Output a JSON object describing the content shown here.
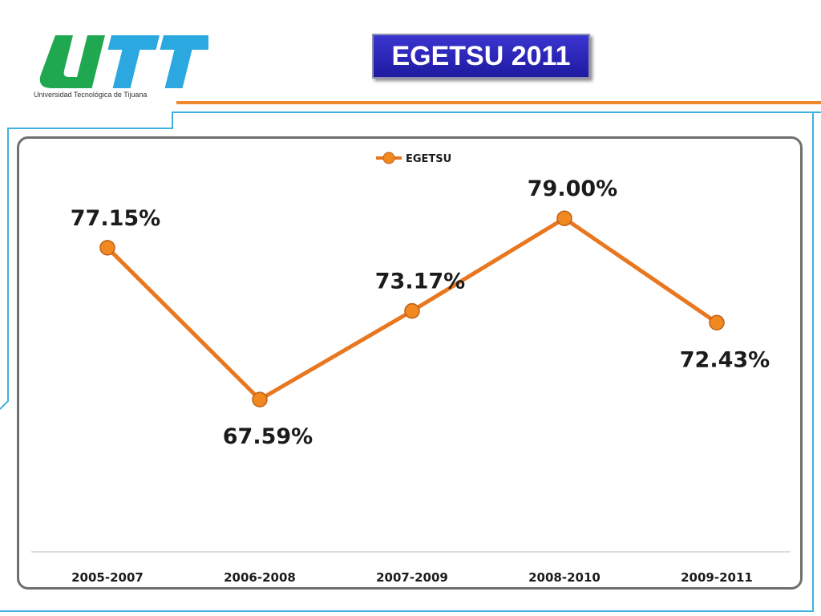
{
  "header": {
    "logo_text": "UTT",
    "logo_caption": "Universidad Tecnológica de Tijuana",
    "title": "EGETSU 2011"
  },
  "colors": {
    "logo_green": "#1fa84f",
    "logo_blue": "#2aa8df",
    "accent_orange": "#ee8a2e",
    "frame_blue": "#3fb0e0",
    "title_bg": "#2a25b8",
    "series_line": "#e8771f",
    "marker_fill": "#f0891f"
  },
  "chart_data": {
    "type": "line",
    "categories": [
      "2005-2007",
      "2006-2008",
      "2007-2009",
      "2008-2010",
      "2009-2011"
    ],
    "series": [
      {
        "name": "EGETSU",
        "values": [
          77.15,
          67.59,
          73.17,
          79.0,
          72.43
        ],
        "labels": [
          "77.15%",
          "67.59%",
          "73.17%",
          "79.00%",
          "72.43%"
        ]
      }
    ],
    "ylim": [
      58,
      83
    ],
    "grid": false,
    "legend": "top-center"
  }
}
